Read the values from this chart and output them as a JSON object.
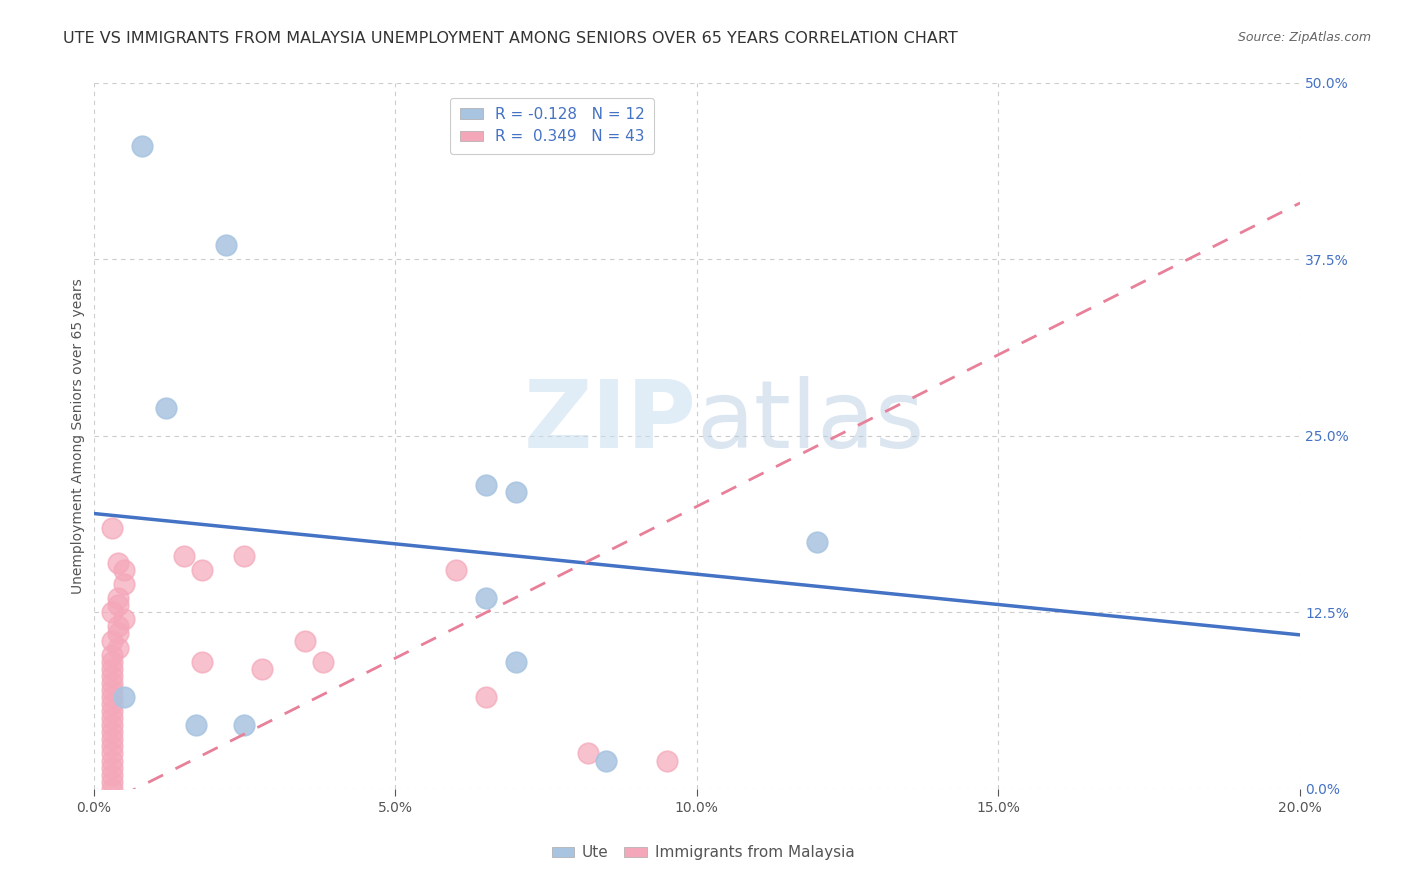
{
  "title": "UTE VS IMMIGRANTS FROM MALAYSIA UNEMPLOYMENT AMONG SENIORS OVER 65 YEARS CORRELATION CHART",
  "source": "Source: ZipAtlas.com",
  "ylabel": "Unemployment Among Seniors over 65 years",
  "xlabel_ticks": [
    "0.0%",
    "5.0%",
    "10.0%",
    "15.0%",
    "20.0%"
  ],
  "xlabel_vals": [
    0.0,
    0.05,
    0.1,
    0.15,
    0.2
  ],
  "ylabel_ticks": [
    "0.0%",
    "12.5%",
    "25.0%",
    "37.5%",
    "50.0%"
  ],
  "ylabel_vals": [
    0.0,
    0.125,
    0.25,
    0.375,
    0.5
  ],
  "xlim": [
    0.0,
    0.2
  ],
  "ylim": [
    0.0,
    0.5
  ],
  "ute_color": "#a8c4e0",
  "ute_edge_color": "#7aafd4",
  "immigrants_color": "#f4a7b9",
  "immigrants_edge_color": "#e8809a",
  "ute_R": -0.128,
  "ute_N": 12,
  "immigrants_R": 0.349,
  "immigrants_N": 43,
  "legend_label_ute": "Ute",
  "legend_label_immigrants": "Immigrants from Malaysia",
  "watermark": "ZIPatlas",
  "ute_line_intercept": 0.195,
  "ute_line_slope": -0.43,
  "imm_line_intercept": -0.015,
  "imm_line_slope": 2.15,
  "ute_points": [
    [
      0.008,
      0.455
    ],
    [
      0.022,
      0.385
    ],
    [
      0.012,
      0.27
    ],
    [
      0.065,
      0.215
    ],
    [
      0.07,
      0.21
    ],
    [
      0.065,
      0.135
    ],
    [
      0.07,
      0.09
    ],
    [
      0.005,
      0.065
    ],
    [
      0.017,
      0.045
    ],
    [
      0.025,
      0.045
    ],
    [
      0.085,
      0.02
    ],
    [
      0.12,
      0.175
    ]
  ],
  "immigrants_points": [
    [
      0.003,
      0.185
    ],
    [
      0.004,
      0.16
    ],
    [
      0.005,
      0.155
    ],
    [
      0.005,
      0.145
    ],
    [
      0.004,
      0.135
    ],
    [
      0.004,
      0.13
    ],
    [
      0.003,
      0.125
    ],
    [
      0.005,
      0.12
    ],
    [
      0.004,
      0.115
    ],
    [
      0.004,
      0.11
    ],
    [
      0.003,
      0.105
    ],
    [
      0.004,
      0.1
    ],
    [
      0.003,
      0.095
    ],
    [
      0.003,
      0.09
    ],
    [
      0.003,
      0.085
    ],
    [
      0.003,
      0.08
    ],
    [
      0.003,
      0.075
    ],
    [
      0.003,
      0.07
    ],
    [
      0.003,
      0.065
    ],
    [
      0.003,
      0.06
    ],
    [
      0.003,
      0.055
    ],
    [
      0.003,
      0.05
    ],
    [
      0.003,
      0.045
    ],
    [
      0.003,
      0.04
    ],
    [
      0.003,
      0.035
    ],
    [
      0.003,
      0.03
    ],
    [
      0.003,
      0.025
    ],
    [
      0.003,
      0.02
    ],
    [
      0.003,
      0.015
    ],
    [
      0.003,
      0.01
    ],
    [
      0.003,
      0.005
    ],
    [
      0.003,
      0.0
    ],
    [
      0.015,
      0.165
    ],
    [
      0.018,
      0.155
    ],
    [
      0.018,
      0.09
    ],
    [
      0.025,
      0.165
    ],
    [
      0.028,
      0.085
    ],
    [
      0.035,
      0.105
    ],
    [
      0.038,
      0.09
    ],
    [
      0.06,
      0.155
    ],
    [
      0.065,
      0.065
    ],
    [
      0.082,
      0.025
    ],
    [
      0.095,
      0.02
    ]
  ],
  "background_color": "#ffffff",
  "grid_color": "#cccccc",
  "title_fontsize": 11.5,
  "axis_label_fontsize": 10,
  "tick_fontsize": 10,
  "source_fontsize": 9,
  "legend_fontsize": 11
}
